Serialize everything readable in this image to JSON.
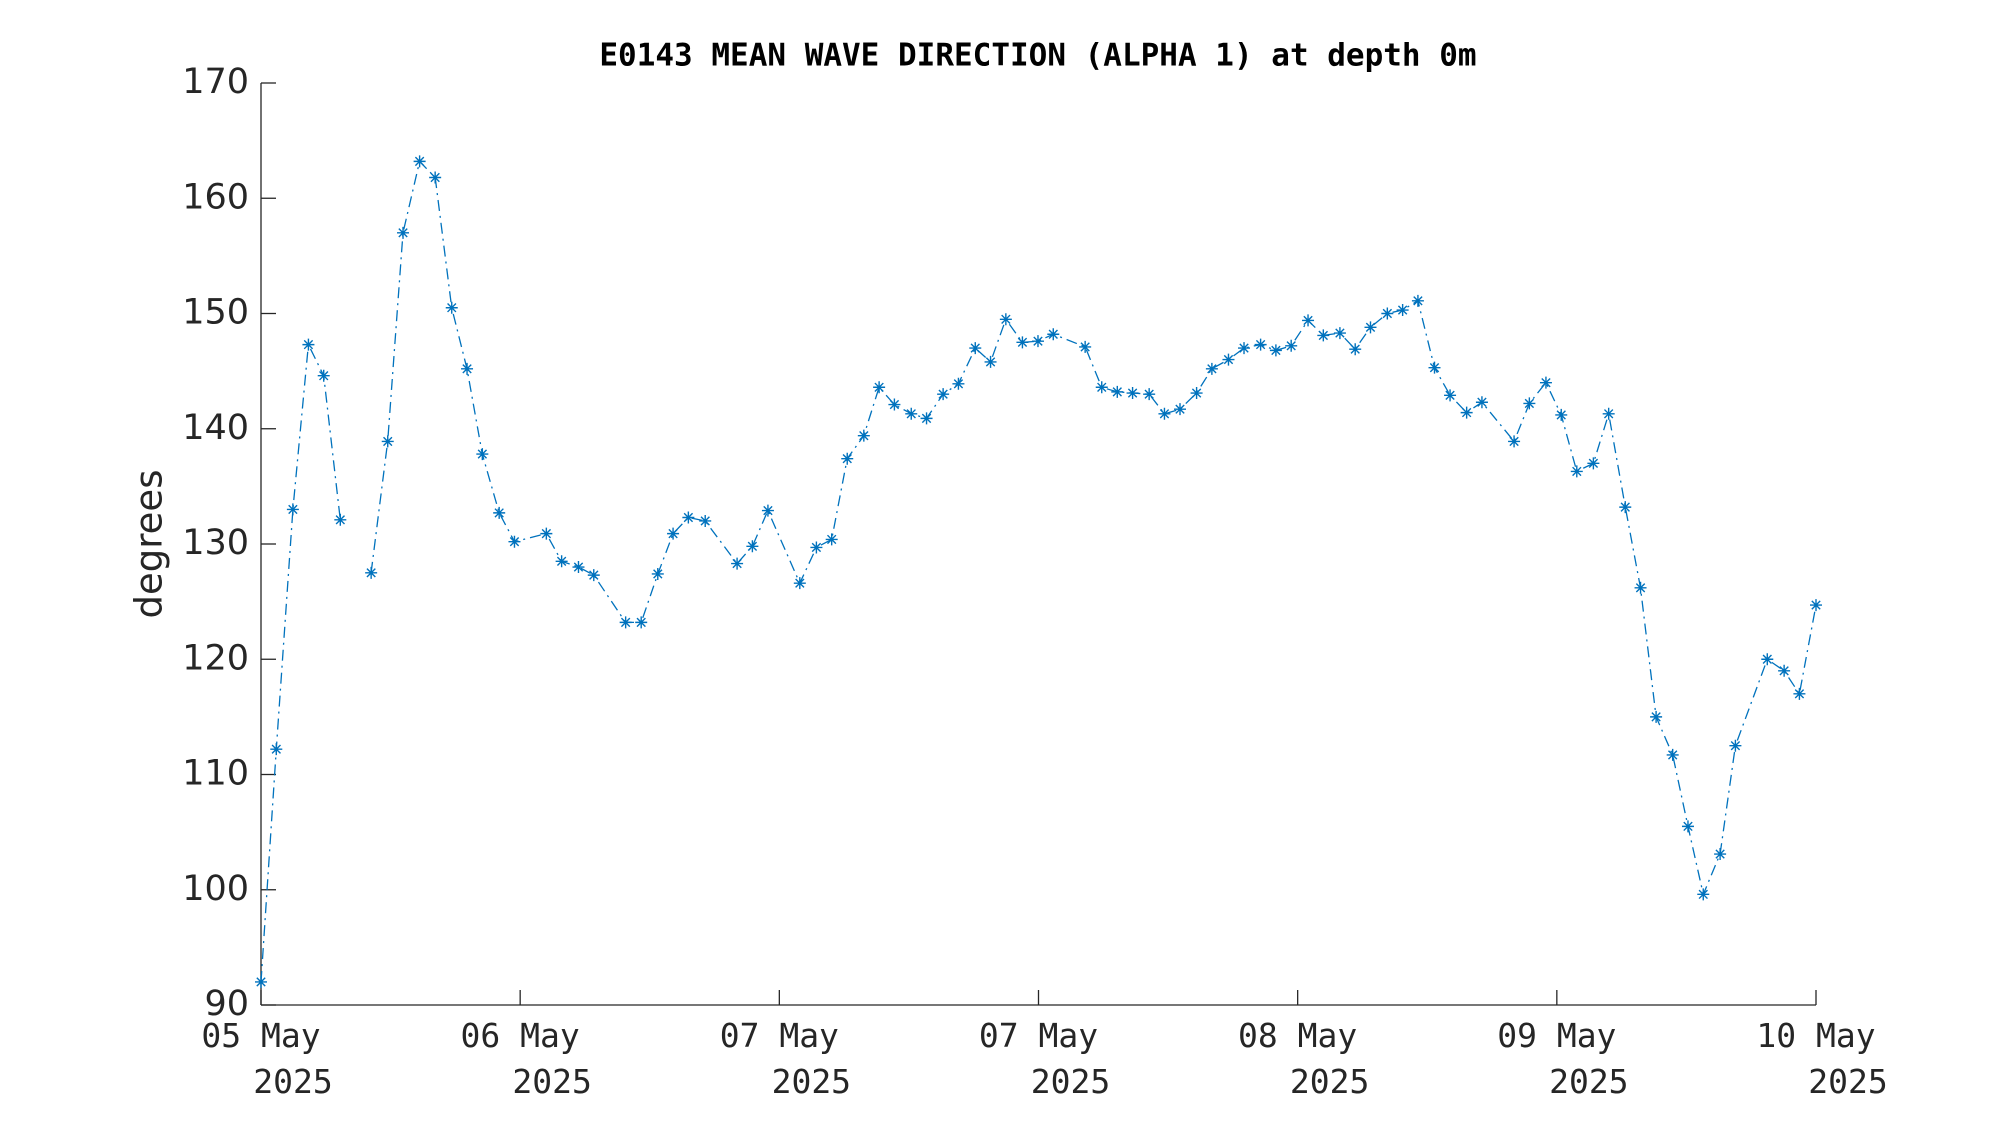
{
  "chart_data": {
    "type": "line",
    "title": "E0143 MEAN WAVE DIRECTION (ALPHA 1) at depth 0m",
    "y_label": "degrees",
    "x": [
      0,
      0.059,
      0.123,
      0.183,
      0.242,
      0.306,
      0.365,
      0.425,
      0.489,
      0.548,
      0.612,
      0.672,
      0.736,
      0.795,
      0.854,
      0.919,
      0.978,
      1.101,
      1.16,
      1.225,
      1.284,
      1.407,
      1.467,
      1.531,
      1.59,
      1.649,
      1.714,
      1.837,
      1.896,
      1.956,
      2.079,
      2.143,
      2.202,
      2.262,
      2.326,
      2.385,
      2.444,
      2.509,
      2.568,
      2.632,
      2.691,
      2.756,
      2.815,
      2.874,
      2.938,
      2.998,
      3.057,
      3.18,
      3.244,
      3.304,
      3.363,
      3.427,
      3.486,
      3.546,
      3.61,
      3.669,
      3.733,
      3.793,
      3.857,
      3.916,
      3.975,
      4.04,
      4.099,
      4.163,
      4.222,
      4.281,
      4.346,
      4.405,
      4.464,
      4.528,
      4.588,
      4.652,
      4.711,
      4.835,
      4.894,
      4.958,
      5.017,
      5.077,
      5.141,
      5.2,
      5.264,
      5.323,
      5.383,
      5.447,
      5.506,
      5.565,
      5.63,
      5.689,
      5.812,
      5.877,
      5.936,
      6.0
    ],
    "series": [
      {
        "name": "MEAN WAVE DIRECTION",
        "color": "#0072bd",
        "values": [
          92,
          112.2,
          133,
          147.3,
          144.6,
          132.1,
          null,
          127.5,
          138.9,
          157,
          163.2,
          161.8,
          150.5,
          145.2,
          137.8,
          132.7,
          130.2,
          130.9,
          128.5,
          128,
          127.3,
          123.2,
          123.2,
          127.4,
          130.9,
          132.3,
          132,
          128.3,
          129.8,
          132.9,
          126.6,
          129.7,
          130.4,
          137.4,
          139.4,
          143.6,
          142.1,
          141.3,
          140.9,
          143,
          143.9,
          147,
          145.8,
          149.5,
          147.5,
          147.6,
          148.2,
          147.1,
          143.6,
          143.2,
          143.1,
          143,
          141.3,
          141.7,
          143.1,
          145.2,
          146,
          147,
          147.3,
          146.8,
          147.2,
          149.4,
          148.1,
          148.3,
          146.9,
          148.8,
          150,
          150.3,
          151.1,
          145.3,
          142.9,
          141.4,
          142.3,
          138.9,
          142.2,
          144,
          141.2,
          136.3,
          137,
          141.3,
          133.2,
          126.2,
          115,
          111.7,
          105.5,
          99.6,
          103.1,
          112.5,
          120,
          119,
          117,
          124.7
        ]
      }
    ],
    "xlim": [
      0,
      6
    ],
    "xticks": [
      {
        "value": 0,
        "label": "05 May 2025"
      },
      {
        "value": 1,
        "label": "06 May 2025"
      },
      {
        "value": 2,
        "label": "07 May 2025"
      },
      {
        "value": 3,
        "label": "07 May 2025"
      },
      {
        "value": 4,
        "label": "08 May 2025"
      },
      {
        "value": 5,
        "label": "09 May 2025"
      },
      {
        "value": 6,
        "label": "10 May 2025"
      }
    ],
    "ylim": [
      90,
      170
    ],
    "yticks": [
      90,
      100,
      110,
      120,
      130,
      140,
      150,
      160,
      170
    ],
    "grid": false,
    "line_style": "dashdot",
    "marker": "asterisk"
  }
}
